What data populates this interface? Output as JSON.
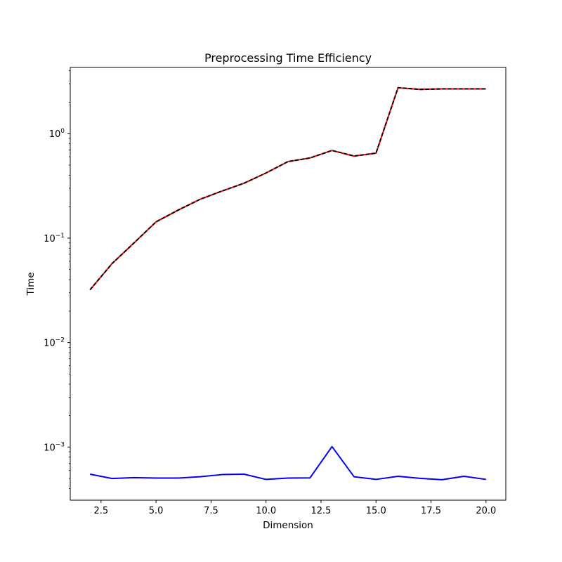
{
  "chart_data": {
    "type": "line",
    "title": "Preprocessing Time Efficiency",
    "xlabel": "Dimension",
    "ylabel": "Time",
    "xscale": "linear",
    "yscale": "log",
    "xlim": [
      1.1,
      20.9
    ],
    "ylim": [
      0.00031,
      4.3
    ],
    "grid": false,
    "x_ticks": [
      {
        "v": 2.5,
        "label": "2.5"
      },
      {
        "v": 5.0,
        "label": "5.0"
      },
      {
        "v": 7.5,
        "label": "7.5"
      },
      {
        "v": 10.0,
        "label": "10.0"
      },
      {
        "v": 12.5,
        "label": "12.5"
      },
      {
        "v": 15.0,
        "label": "15.0"
      },
      {
        "v": 17.5,
        "label": "17.5"
      },
      {
        "v": 20.0,
        "label": "20.0"
      }
    ],
    "y_ticks": [
      {
        "v": 0.001,
        "base": "10",
        "exp": "−3"
      },
      {
        "v": 0.01,
        "base": "10",
        "exp": "−2"
      },
      {
        "v": 0.1,
        "base": "10",
        "exp": "−1"
      },
      {
        "v": 1,
        "base": "10",
        "exp": "0"
      }
    ],
    "x": [
      2,
      3,
      4,
      5,
      6,
      7,
      8,
      9,
      10,
      11,
      12,
      13,
      14,
      15,
      16,
      17,
      18,
      19,
      20
    ],
    "series": [
      {
        "color": "#ff0000",
        "style": "solid",
        "values": [
          0.032,
          0.057,
          0.09,
          0.143,
          0.185,
          0.235,
          0.282,
          0.335,
          0.42,
          0.54,
          0.585,
          0.69,
          0.61,
          0.65,
          2.75,
          2.65,
          2.68,
          2.68,
          2.68
        ]
      },
      {
        "color": "#000000",
        "style": "dashed",
        "values": [
          0.032,
          0.057,
          0.09,
          0.143,
          0.185,
          0.235,
          0.282,
          0.335,
          0.42,
          0.54,
          0.585,
          0.69,
          0.61,
          0.65,
          2.75,
          2.65,
          2.68,
          2.68,
          2.68
        ]
      },
      {
        "color": "#0000ff",
        "style": "solid",
        "values": [
          0.00055,
          0.0005,
          0.00051,
          0.000505,
          0.000505,
          0.00052,
          0.000545,
          0.00055,
          0.00049,
          0.000505,
          0.000507,
          0.00101,
          0.00052,
          0.00049,
          0.000525,
          0.000502,
          0.000487,
          0.000525,
          0.00049
        ]
      }
    ]
  }
}
